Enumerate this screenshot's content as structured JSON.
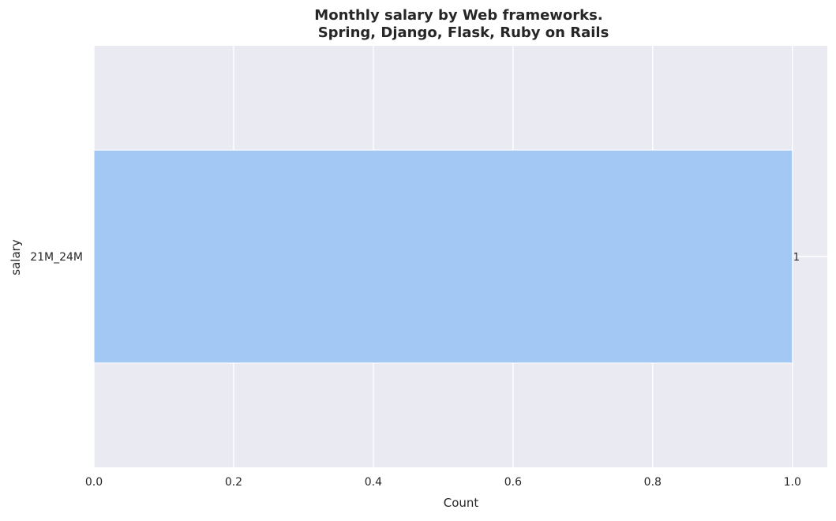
{
  "chart_data": {
    "type": "bar",
    "orientation": "horizontal",
    "title": "Monthly salary by Web frameworks.",
    "subtitle": "Spring, Django, Flask, Ruby on Rails",
    "xlabel": "Count",
    "ylabel": "salary",
    "categories": [
      "21M_24M"
    ],
    "values": [
      1
    ],
    "data_labels": [
      "1"
    ],
    "xlim": [
      0,
      1.05
    ],
    "xticks": [
      0.0,
      0.2,
      0.4,
      0.6,
      0.8,
      1.0
    ],
    "xtick_labels": [
      "0.0",
      "0.2",
      "0.4",
      "0.6",
      "0.8",
      "1.0"
    ],
    "grid": true,
    "colors": {
      "background": "#eaeaf2",
      "grid": "#ffffff",
      "bar": "#a4c8f4"
    }
  }
}
